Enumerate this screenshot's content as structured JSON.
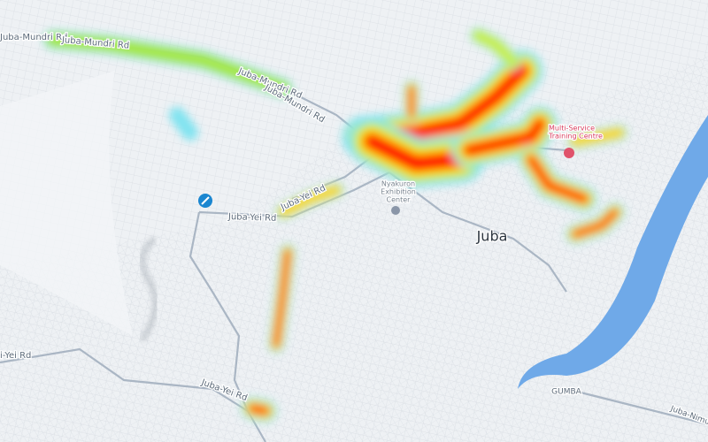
{
  "map": {
    "labels": [
      {
        "text": "Juba-Mundri Rd"
      },
      {
        "text": "Juba-Mundri Rd"
      },
      {
        "text": "Juba-Mundri Rd"
      },
      {
        "text": "Juba-Mundri Rd"
      },
      {
        "text": "Juba-Yei Rd"
      },
      {
        "text": "Juba-Yei Rd"
      },
      {
        "text": "Juba-Yei Rd"
      },
      {
        "text": "i-Yei Rd"
      },
      {
        "text": "Nyakuron"
      },
      {
        "text": "Exhibition"
      },
      {
        "text": "Center"
      },
      {
        "text": "Juba"
      },
      {
        "text": "Multi-Service"
      },
      {
        "text": "Training Centre"
      },
      {
        "text": "GUMBA"
      },
      {
        "text": "Juba-Nimul"
      }
    ]
  }
}
